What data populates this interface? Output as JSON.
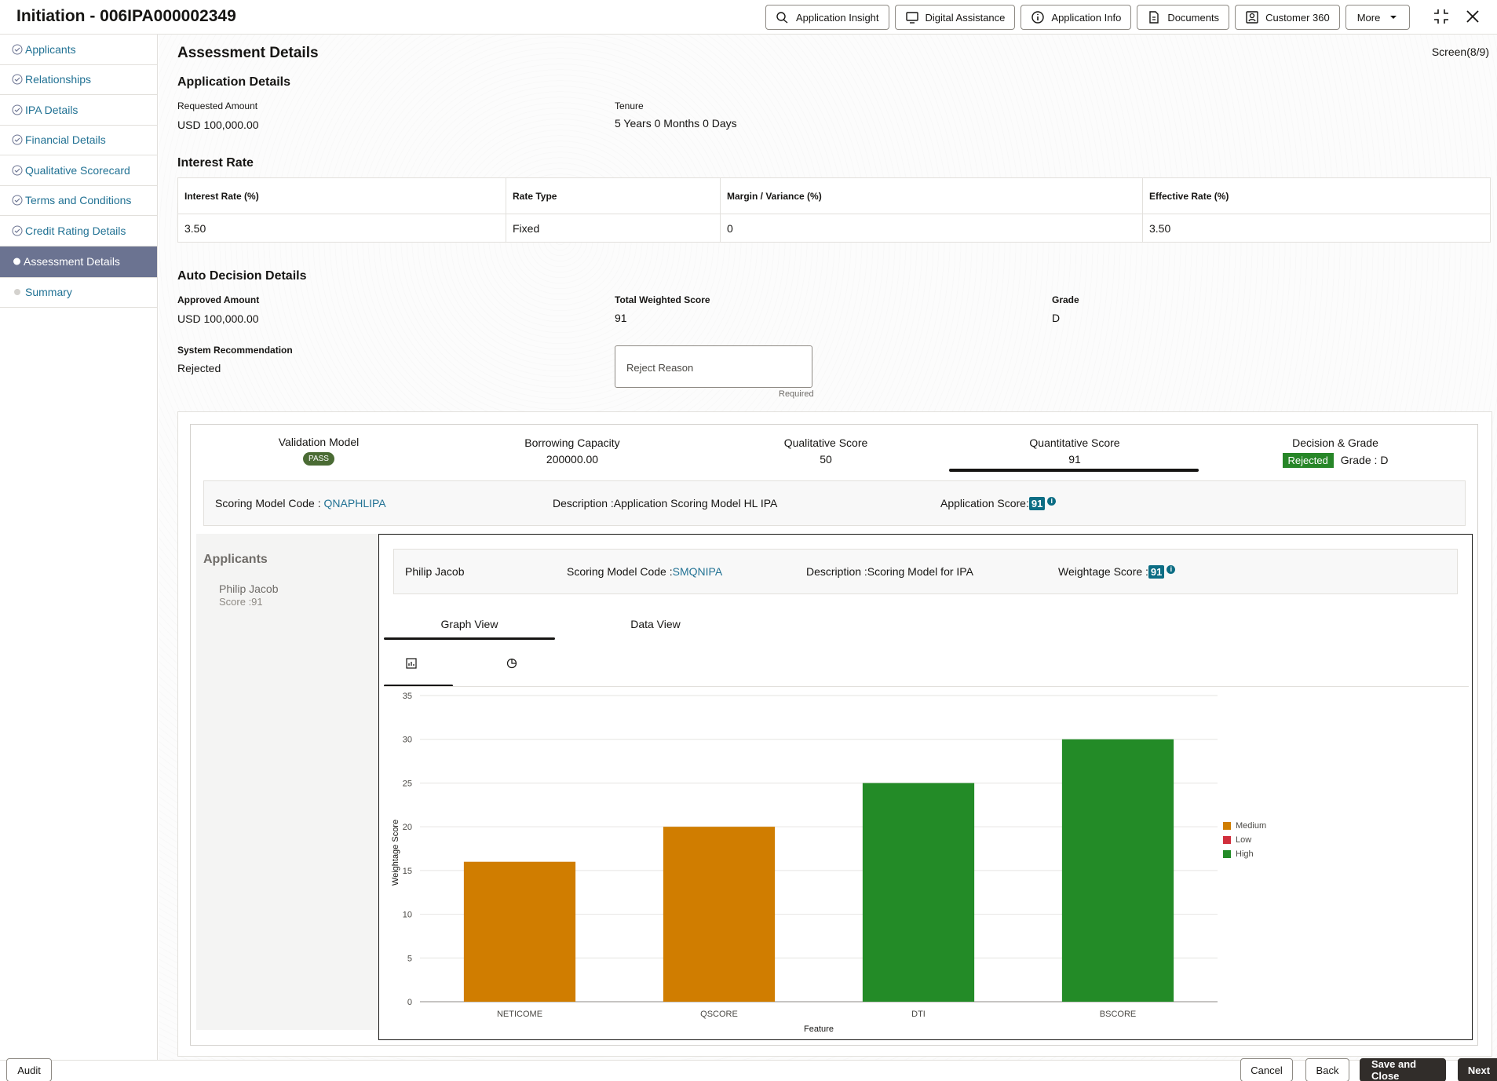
{
  "header": {
    "title": "Initiation - 006IPA000002349",
    "buttons": [
      {
        "label": "Application Insight",
        "icon": "insight-icon"
      },
      {
        "label": "Digital Assistance",
        "icon": "assistant-icon"
      },
      {
        "label": "Application Info",
        "icon": "info-icon"
      },
      {
        "label": "Documents",
        "icon": "document-icon"
      },
      {
        "label": "Customer 360",
        "icon": "customer-icon"
      }
    ],
    "more_label": "More"
  },
  "sidebar": {
    "items": [
      {
        "label": "Applicants",
        "state": "done"
      },
      {
        "label": "Relationships",
        "state": "done"
      },
      {
        "label": "IPA Details",
        "state": "done"
      },
      {
        "label": "Financial Details",
        "state": "done"
      },
      {
        "label": "Qualitative Scorecard",
        "state": "done"
      },
      {
        "label": "Terms and Conditions",
        "state": "done"
      },
      {
        "label": "Credit Rating Details",
        "state": "done"
      },
      {
        "label": "Assessment Details",
        "state": "active"
      },
      {
        "label": "Summary",
        "state": "pending"
      }
    ]
  },
  "main": {
    "title": "Assessment Details",
    "screen_counter": "Screen(8/9)",
    "application_details": {
      "heading": "Application Details",
      "requested_amount_label": "Requested Amount",
      "requested_amount": "USD 100,000.00",
      "tenure_label": "Tenure",
      "tenure": "5 Years 0 Months 0 Days"
    },
    "interest_rate": {
      "heading": "Interest Rate",
      "columns": [
        "Interest Rate (%)",
        "Rate Type",
        "Margin / Variance (%)",
        "Effective Rate (%)"
      ],
      "row": [
        "3.50",
        "Fixed",
        "0",
        "3.50"
      ]
    },
    "auto_decision": {
      "heading": "Auto Decision Details",
      "approved_amount_label": "Approved Amount",
      "approved_amount": "USD 100,000.00",
      "total_weighted_score_label": "Total Weighted Score",
      "total_weighted_score": "91",
      "grade_label": "Grade",
      "grade": "D",
      "system_recommendation_label": "System Recommendation",
      "system_recommendation": "Rejected",
      "reject_reason_placeholder": "Reject Reason",
      "required_text": "Required"
    },
    "scores": {
      "validation_model_label": "Validation Model",
      "validation_model_value": "PASS",
      "borrowing_capacity_label": "Borrowing Capacity",
      "borrowing_capacity_value": "200000.00",
      "qualitative_score_label": "Qualitative Score",
      "qualitative_score_value": "50",
      "quantitative_score_label": "Quantitative Score",
      "quantitative_score_value": "91",
      "decision_grade_label": "Decision & Grade",
      "decision_value": "Rejected",
      "grade_text": "Grade : D"
    },
    "scoring_model": {
      "code_label": "Scoring Model Code : ",
      "code": "QNAPHLIPA",
      "description": "Description :Application Scoring Model HL IPA",
      "app_score_label": "Application Score:",
      "app_score": "91"
    },
    "applicants_pane": {
      "title": "Applicants",
      "name": "Philip Jacob",
      "score": "Score :91"
    },
    "applicant_model": {
      "name": "Philip Jacob",
      "code_label": "Scoring Model Code :",
      "code": "SMQNIPA",
      "description": "Description :Scoring Model for IPA",
      "weightage_label": "Weightage Score :",
      "weightage": "91"
    },
    "view_tabs": [
      "Graph View",
      "Data View"
    ],
    "chart_type_icons": [
      "bar-chart-icon",
      "pie-chart-icon"
    ]
  },
  "chart_data": {
    "type": "bar",
    "categories": [
      "NETICOME",
      "QSCORE",
      "DTI",
      "BSCORE"
    ],
    "values": [
      16,
      20,
      25,
      30
    ],
    "levels": [
      "Medium",
      "Medium",
      "High",
      "High"
    ],
    "xlabel": "Feature",
    "ylabel": "Weightage Score",
    "ylim": [
      0,
      35
    ],
    "yticks": [
      0,
      5,
      10,
      15,
      20,
      25,
      30,
      35
    ],
    "legend": [
      {
        "name": "Medium",
        "color": "#d07d00"
      },
      {
        "name": "Low",
        "color": "#d12f3c"
      },
      {
        "name": "High",
        "color": "#238b27"
      }
    ],
    "legend_position": "right",
    "grid": true
  },
  "footer": {
    "audit": "Audit",
    "cancel": "Cancel",
    "back": "Back",
    "save_close": "Save and Close",
    "next": "Next"
  }
}
